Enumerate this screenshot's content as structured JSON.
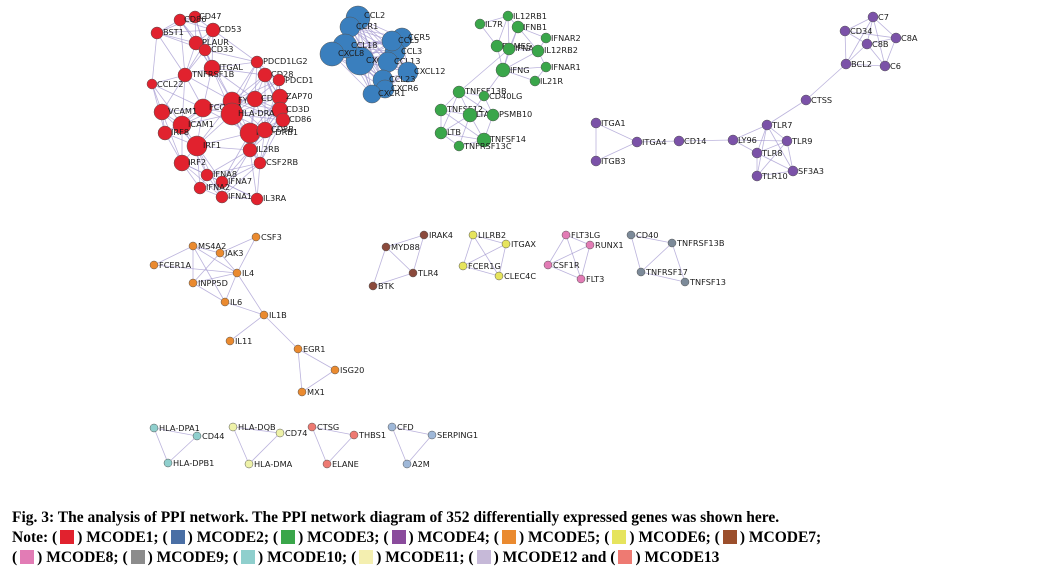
{
  "caption": {
    "title": "Fig. 3: The analysis of PPI network. The PPI network diagram of 352 differentially expressed genes was shown here.",
    "note_label": "Note:",
    "items": [
      {
        "label": "MCODE1",
        "color": "#e1222e"
      },
      {
        "label": "MCODE2",
        "color": "#4a6fa5"
      },
      {
        "label": "MCODE3",
        "color": "#3aa64a"
      },
      {
        "label": "MCODE4",
        "color": "#8a4b9c"
      },
      {
        "label": "MCODE5",
        "color": "#ea8a2f"
      },
      {
        "label": "MCODE6",
        "color": "#e6e45d"
      },
      {
        "label": "MCODE7",
        "color": "#9c4f2c"
      },
      {
        "label": "MCODE8",
        "color": "#e27cb5"
      },
      {
        "label": "MCODE9",
        "color": "#8c8c8c"
      },
      {
        "label": "MCODE10",
        "color": "#8fcfcd"
      },
      {
        "label": "MCODE11",
        "color": "#f4efb0"
      },
      {
        "label": "MCODE12",
        "color": "#c6b9d8"
      },
      {
        "label": "MCODE13",
        "color": "#ee7a72"
      }
    ],
    "and_word": "and"
  },
  "network": {
    "node_colors": {
      "m1": "#e1222e",
      "m2": "#3a7fbe",
      "m3": "#3aa64a",
      "m4": "#7b52a8",
      "m5": "#ea8a2f",
      "m6": "#e6e45d",
      "m7": "#8b4a3c",
      "m8": "#e27cb5",
      "m9": "#7c8a99",
      "m10": "#8fcfcd",
      "m11": "#eef2a8",
      "m12": "#9fb8d8",
      "m13": "#ee7a72"
    },
    "edge_color": "#a49ad0",
    "labeled_genes": [
      "CD47",
      "CD86",
      "CD53",
      "BST1",
      "PLAUR",
      "CD33",
      "ITGAL",
      "TNFRSF1B",
      "CCL22",
      "PDCD1LG2",
      "CD28",
      "PDCD1",
      "FYN",
      "CD3E",
      "ZAP70",
      "CD3D",
      "FCGR1A",
      "HLA-DRA",
      "CD86",
      "VCAM1",
      "ICAM1",
      "HLA-DRB1",
      "CD8B",
      "IRF8",
      "IRF1",
      "IRF2",
      "IL2RB",
      "CSF2RB",
      "IFNA8",
      "IFNA7",
      "IFNA2",
      "IFNA1",
      "IL3RA",
      "CCL2",
      "CCR1",
      "CCR5",
      "CCL3",
      "CCL5",
      "CXCL9",
      "CCL18",
      "CXCL8",
      "CCL13",
      "CXCL12",
      "CCL23",
      "CXCR6",
      "CXCR1",
      "IL12RB1",
      "IL7R",
      "IFNB1",
      "IFNAR2",
      "EOMES",
      "IFNA",
      "IL12RB2",
      "IFNG",
      "IFNAR1",
      "IL21R",
      "TNFSF13B",
      "CD40LG",
      "TNFSF12",
      "LTA",
      "PSMB10",
      "LTB",
      "TNFSF14",
      "TNFRSF13C",
      "C7",
      "CD34",
      "C8A",
      "C8B",
      "BCL2",
      "C6",
      "CTSS",
      "ITGA1",
      "ITGA4",
      "CD14",
      "LY96",
      "TLR7",
      "TLR9",
      "TLR8",
      "TLR10",
      "SF3A3",
      "ITGB3",
      "CSF3",
      "MS4A2",
      "JAK3",
      "FCER1A",
      "IL4",
      "INPP5D",
      "IL6",
      "IL1B",
      "IL11",
      "EGR1",
      "ISG20",
      "MX1",
      "IRAK4",
      "MYD88",
      "TLR4",
      "BTK",
      "LILRB2",
      "ITGAX",
      "FCER1G",
      "CLEC4C",
      "FLT3LG",
      "RUNX1",
      "CSF1R",
      "FLT3",
      "CD40",
      "TNFRSF13B",
      "TNFRSF17",
      "TNFSF13",
      "HLA-DPA1",
      "CD44",
      "HLA-DPB1",
      "HLA-DQB",
      "CD74",
      "HLA-DMA",
      "CTSG",
      "THBS1",
      "ELANE",
      "CFD",
      "SERPING1",
      "A2M"
    ]
  }
}
